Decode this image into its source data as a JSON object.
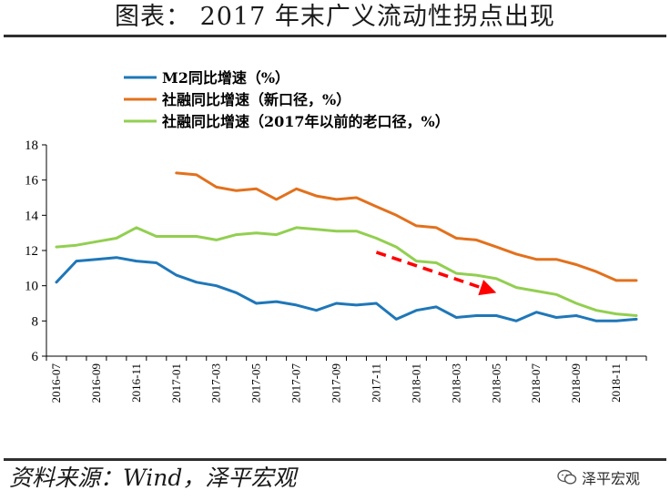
{
  "header": {
    "title": "图表： 2017 年末广义流动性拐点出现"
  },
  "footer": {
    "source": "资料来源：Wind，泽平宏观",
    "watermark": "泽平宏观"
  },
  "colors": {
    "m2": "#1f77b8",
    "tsf_new": "#e2711d",
    "tsf_old": "#92cf50",
    "arrow": "#ff0000",
    "axis": "#000000"
  },
  "chart_data": {
    "type": "line",
    "title": "",
    "xlabel": "",
    "ylabel": "",
    "ylim": [
      6,
      18
    ],
    "yticks": [
      6,
      8,
      10,
      12,
      14,
      16,
      18
    ],
    "grid": false,
    "legend_position": "top-left",
    "x": [
      "2016-07",
      "2016-08",
      "2016-09",
      "2016-10",
      "2016-11",
      "2016-12",
      "2017-01",
      "2017-02",
      "2017-03",
      "2017-04",
      "2017-05",
      "2017-06",
      "2017-07",
      "2017-08",
      "2017-09",
      "2017-10",
      "2017-11",
      "2017-12",
      "2018-01",
      "2018-02",
      "2018-03",
      "2018-04",
      "2018-05",
      "2018-06",
      "2018-07",
      "2018-08",
      "2018-09",
      "2018-10",
      "2018-11",
      "2018-12"
    ],
    "xticklabels": [
      "2016-07",
      "2016-09",
      "2016-11",
      "2017-01",
      "2017-03",
      "2017-05",
      "2017-07",
      "2017-09",
      "2017-11",
      "2018-01",
      "2018-03",
      "2018-05",
      "2018-07",
      "2018-09",
      "2018-11"
    ],
    "series": [
      {
        "name": "M2同比增速（%）",
        "color_key": "m2",
        "values": [
          10.2,
          11.4,
          11.5,
          11.6,
          11.4,
          11.3,
          10.6,
          10.2,
          10.0,
          9.6,
          9.0,
          9.1,
          8.9,
          8.6,
          9.0,
          8.9,
          9.0,
          8.1,
          8.6,
          8.8,
          8.2,
          8.3,
          8.3,
          8.0,
          8.5,
          8.2,
          8.3,
          8.0,
          8.0,
          8.1
        ]
      },
      {
        "name": "社融同比增速（新口径，%）",
        "color_key": "tsf_new",
        "values": [
          null,
          null,
          null,
          null,
          null,
          null,
          16.4,
          16.3,
          15.6,
          15.4,
          15.5,
          14.9,
          15.5,
          15.1,
          14.9,
          15.0,
          14.5,
          14.0,
          13.4,
          13.3,
          12.7,
          12.6,
          12.2,
          11.8,
          11.5,
          11.5,
          11.2,
          10.8,
          10.3,
          10.3
        ]
      },
      {
        "name": "社融同比增速（2017年以前的老口径，%）",
        "color_key": "tsf_old",
        "values": [
          12.2,
          12.3,
          12.5,
          12.7,
          13.3,
          12.8,
          12.8,
          12.8,
          12.6,
          12.9,
          13.0,
          12.9,
          13.3,
          13.2,
          13.1,
          13.1,
          12.7,
          12.2,
          11.4,
          11.3,
          10.7,
          10.6,
          10.4,
          9.9,
          9.7,
          9.5,
          9.0,
          8.6,
          8.4,
          8.3
        ]
      }
    ],
    "annotation": {
      "type": "arrow",
      "from": [
        "2017-11",
        11.9
      ],
      "to": [
        "2018-05",
        9.6
      ]
    }
  }
}
